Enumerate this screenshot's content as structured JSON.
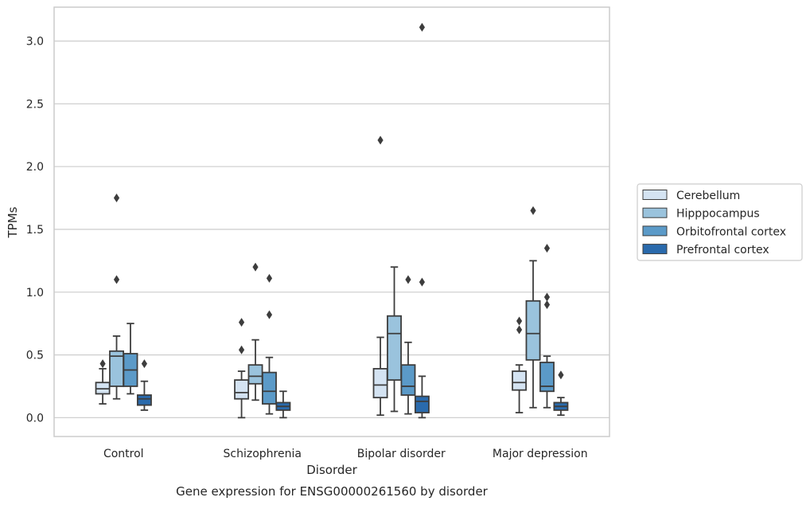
{
  "chart_data": {
    "type": "box",
    "caption": "Gene expression for ENSG00000261560 by disorder",
    "xlabel": "Disorder",
    "ylabel": "TPMs",
    "ylim": [
      -0.15,
      3.27
    ],
    "yticks": [
      0.0,
      0.5,
      1.0,
      1.5,
      2.0,
      2.5,
      3.0
    ],
    "ytick_labels": [
      "0.0",
      "0.5",
      "1.0",
      "1.5",
      "2.0",
      "2.5",
      "3.0"
    ],
    "grid": "horizontal",
    "legend_position": "right",
    "categories": [
      "Control",
      "Schizophrenia",
      "Bipolar disorder",
      "Major depression"
    ],
    "series": [
      {
        "name": "Cerebellum",
        "color": "#d4e3f2",
        "boxes": [
          {
            "q1": 0.19,
            "median": 0.23,
            "q3": 0.28,
            "whisker_low": 0.11,
            "whisker_high": 0.39,
            "outliers": [
              0.43
            ]
          },
          {
            "q1": 0.15,
            "median": 0.2,
            "q3": 0.3,
            "whisker_low": 0.0,
            "whisker_high": 0.37,
            "outliers": [
              0.54,
              0.76
            ]
          },
          {
            "q1": 0.16,
            "median": 0.26,
            "q3": 0.39,
            "whisker_low": 0.02,
            "whisker_high": 0.64,
            "outliers": [
              2.21
            ]
          },
          {
            "q1": 0.22,
            "median": 0.28,
            "q3": 0.37,
            "whisker_low": 0.04,
            "whisker_high": 0.42,
            "outliers": [
              0.7,
              0.77
            ]
          }
        ]
      },
      {
        "name": "Hipppocampus",
        "color": "#9ac3dd",
        "boxes": [
          {
            "q1": 0.25,
            "median": 0.49,
            "q3": 0.53,
            "whisker_low": 0.15,
            "whisker_high": 0.65,
            "outliers": [
              1.1,
              1.75
            ]
          },
          {
            "q1": 0.27,
            "median": 0.33,
            "q3": 0.42,
            "whisker_low": 0.14,
            "whisker_high": 0.62,
            "outliers": [
              1.2
            ]
          },
          {
            "q1": 0.3,
            "median": 0.67,
            "q3": 0.81,
            "whisker_low": 0.05,
            "whisker_high": 1.2,
            "outliers": []
          },
          {
            "q1": 0.46,
            "median": 0.67,
            "q3": 0.93,
            "whisker_low": 0.08,
            "whisker_high": 1.25,
            "outliers": [
              1.65
            ]
          }
        ]
      },
      {
        "name": "Orbitofrontal cortex",
        "color": "#5b9ac8",
        "boxes": [
          {
            "q1": 0.25,
            "median": 0.38,
            "q3": 0.51,
            "whisker_low": 0.19,
            "whisker_high": 0.75,
            "outliers": []
          },
          {
            "q1": 0.11,
            "median": 0.21,
            "q3": 0.36,
            "whisker_low": 0.03,
            "whisker_high": 0.48,
            "outliers": [
              0.82,
              1.11
            ]
          },
          {
            "q1": 0.18,
            "median": 0.25,
            "q3": 0.42,
            "whisker_low": 0.03,
            "whisker_high": 0.6,
            "outliers": [
              1.1
            ]
          },
          {
            "q1": 0.21,
            "median": 0.25,
            "q3": 0.44,
            "whisker_low": 0.08,
            "whisker_high": 0.49,
            "outliers": [
              0.9,
              0.96,
              1.35
            ]
          }
        ]
      },
      {
        "name": "Prefrontal cortex",
        "color": "#2a6aac",
        "boxes": [
          {
            "q1": 0.1,
            "median": 0.15,
            "q3": 0.18,
            "whisker_low": 0.06,
            "whisker_high": 0.29,
            "outliers": [
              0.43
            ]
          },
          {
            "q1": 0.06,
            "median": 0.09,
            "q3": 0.12,
            "whisker_low": 0.0,
            "whisker_high": 0.21,
            "outliers": []
          },
          {
            "q1": 0.04,
            "median": 0.13,
            "q3": 0.17,
            "whisker_low": 0.0,
            "whisker_high": 0.33,
            "outliers": [
              1.08,
              3.11
            ]
          },
          {
            "q1": 0.06,
            "median": 0.09,
            "q3": 0.12,
            "whisker_low": 0.02,
            "whisker_high": 0.16,
            "outliers": [
              0.34
            ]
          }
        ]
      }
    ]
  }
}
